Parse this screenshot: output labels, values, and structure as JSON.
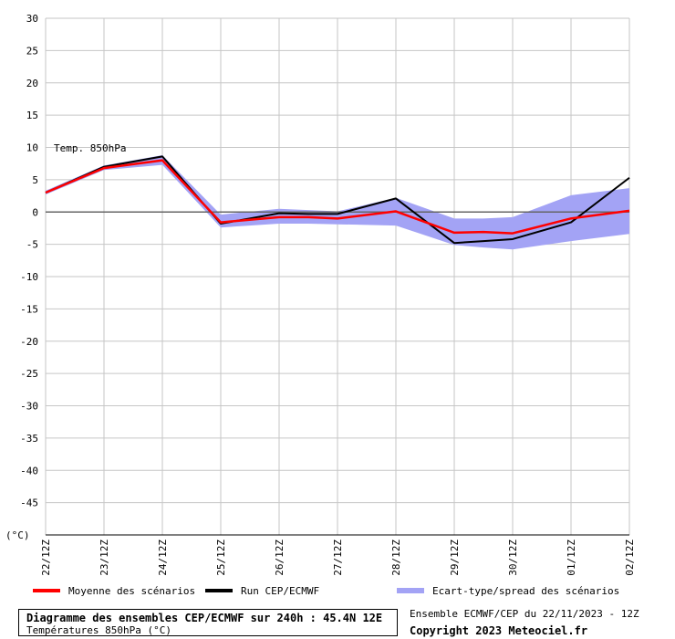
{
  "chart_data": {
    "type": "line",
    "annotation": "Temp. 850hPa",
    "ylabel": "(°C)",
    "ylim": [
      -50,
      30
    ],
    "yticks": [
      30,
      25,
      20,
      15,
      10,
      5,
      0,
      -5,
      -10,
      -15,
      -20,
      -25,
      -30,
      -35,
      -40,
      -45
    ],
    "categories": [
      "22/12Z",
      "23/12Z",
      "24/12Z",
      "25/12Z",
      "26/12Z",
      "27/12Z",
      "28/12Z",
      "29/12Z",
      "30/12Z",
      "01/12Z",
      "02/12Z"
    ],
    "x_positions": [
      0,
      1,
      2,
      3,
      4,
      5,
      6,
      7,
      8,
      9,
      10
    ],
    "grid": true,
    "zero_line": true,
    "series": [
      {
        "name": "Moyenne des scénarios",
        "color": "#ff0000",
        "x": [
          0,
          1,
          2,
          3,
          4,
          4.5,
          5,
          6,
          7,
          7.5,
          8,
          9,
          10
        ],
        "values": [
          3.0,
          6.8,
          8.0,
          -1.6,
          -0.8,
          -0.8,
          -1.0,
          0.1,
          -3.2,
          -3.1,
          -3.3,
          -1.0,
          0.2
        ]
      },
      {
        "name": "Run CEP/ECMWF",
        "color": "#000000",
        "x": [
          0,
          1,
          2,
          3,
          4,
          4.5,
          5,
          6,
          7,
          7.5,
          8,
          9,
          10
        ],
        "values": [
          3.0,
          7.0,
          8.6,
          -1.8,
          -0.2,
          -0.3,
          -0.3,
          2.1,
          -4.8,
          -4.5,
          -4.2,
          -1.6,
          5.3
        ]
      },
      {
        "name": "Ecart-type/spread des scénarios",
        "color": "#a3a3f5",
        "x": [
          0,
          1,
          2,
          3,
          4,
          4.5,
          5,
          6,
          7,
          7.5,
          8,
          9,
          10
        ],
        "upper": [
          3.3,
          7.2,
          8.8,
          -0.4,
          0.5,
          0.3,
          0.1,
          2.2,
          -1.0,
          -1.0,
          -0.8,
          2.6,
          3.7
        ],
        "lower": [
          2.7,
          6.5,
          7.3,
          -2.4,
          -1.8,
          -1.8,
          -1.9,
          -2.1,
          -5.1,
          -5.5,
          -5.8,
          -4.5,
          -3.4
        ]
      }
    ]
  },
  "legend": {
    "mean_label": "Moyenne des scénarios",
    "run_label": "Run CEP/ECMWF",
    "spread_label": "Ecart-type/spread des scénarios"
  },
  "caption": {
    "title": "Diagramme des ensembles CEP/ECMWF sur 240h : 45.4N 12E",
    "subtitle": "Températures 850hPa (°C)"
  },
  "run_info": "Ensemble ECMWF/CEP du 22/11/2023 - 12Z",
  "copyright": "Copyright 2023 Meteociel.fr"
}
